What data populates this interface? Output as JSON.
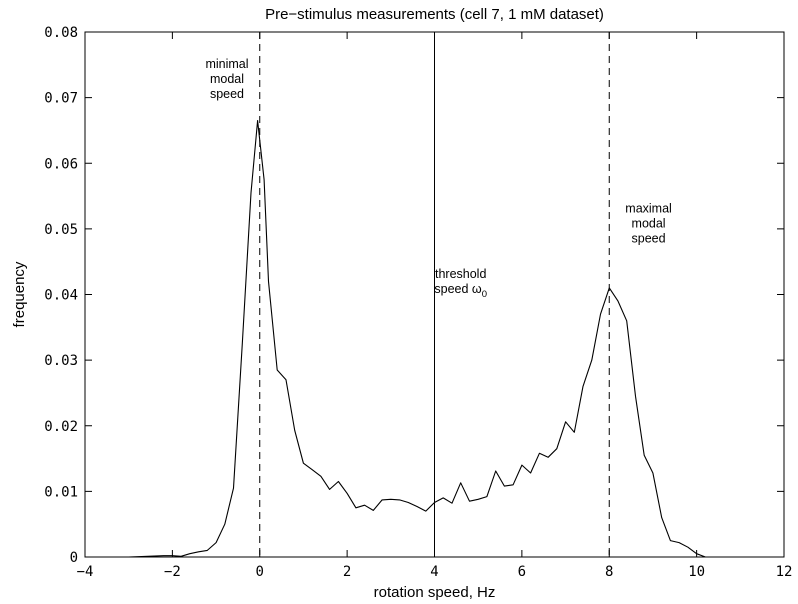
{
  "chart_data": {
    "type": "line",
    "title": "Pre−stimulus measurements (cell 7, 1 mM dataset)",
    "xlabel": "rotation speed, Hz",
    "ylabel": "frequency",
    "xlim": [
      -4,
      12
    ],
    "ylim": [
      0,
      0.08
    ],
    "xticks": [
      -4,
      -2,
      0,
      2,
      4,
      6,
      8,
      10,
      12
    ],
    "xtick_labels": [
      "−4",
      "−2",
      "0",
      "2",
      "4",
      "6",
      "8",
      "10",
      "12"
    ],
    "yticks": [
      0,
      0.01,
      0.02,
      0.03,
      0.04,
      0.05,
      0.06,
      0.07,
      0.08
    ],
    "ytick_labels": [
      "0",
      "0.01",
      "0.02",
      "0.03",
      "0.04",
      "0.05",
      "0.06",
      "0.07",
      "0.08"
    ],
    "grid": false,
    "series": [
      {
        "color": "#000000",
        "x": [
          -3.0,
          -2.2,
          -2.0,
          -1.8,
          -1.6,
          -1.4,
          -1.2,
          -1.0,
          -0.8,
          -0.6,
          -0.4,
          -0.2,
          -0.05,
          0.1,
          0.2,
          0.4,
          0.6,
          0.8,
          1.0,
          1.2,
          1.4,
          1.6,
          1.8,
          2.0,
          2.2,
          2.4,
          2.6,
          2.8,
          3.0,
          3.2,
          3.4,
          3.6,
          3.8,
          4.0,
          4.2,
          4.4,
          4.6,
          4.8,
          5.0,
          5.2,
          5.4,
          5.6,
          5.8,
          6.0,
          6.2,
          6.4,
          6.6,
          6.8,
          7.0,
          7.2,
          7.4,
          7.6,
          7.8,
          8.0,
          8.2,
          8.4,
          8.6,
          8.8,
          9.0,
          9.2,
          9.4,
          9.6,
          9.8,
          10.0,
          10.2
        ],
        "y": [
          0.0,
          0.0002,
          0.0002,
          0.0001,
          0.0005,
          0.0008,
          0.001,
          0.0022,
          0.005,
          0.0105,
          0.0325,
          0.0555,
          0.0665,
          0.0575,
          0.042,
          0.0285,
          0.027,
          0.0193,
          0.0143,
          0.0133,
          0.0123,
          0.0103,
          0.0115,
          0.0097,
          0.0075,
          0.0079,
          0.0071,
          0.0087,
          0.0088,
          0.0087,
          0.0083,
          0.0077,
          0.007,
          0.0083,
          0.009,
          0.0082,
          0.0113,
          0.0085,
          0.0088,
          0.0092,
          0.0131,
          0.0108,
          0.011,
          0.014,
          0.0128,
          0.0158,
          0.0152,
          0.0165,
          0.0206,
          0.019,
          0.026,
          0.03,
          0.037,
          0.041,
          0.039,
          0.036,
          0.0245,
          0.0155,
          0.0128,
          0.006,
          0.0025,
          0.0022,
          0.0015,
          0.0005,
          0.0
        ]
      }
    ],
    "reference_lines": [
      {
        "x": 0,
        "style": "dashed"
      },
      {
        "x": 4,
        "style": "solid"
      },
      {
        "x": 8,
        "style": "dashed"
      }
    ],
    "annotations": [
      {
        "lines": [
          "minimal",
          "modal",
          "speed"
        ],
        "x": -0.75,
        "y": 0.0745
      },
      {
        "lines": [
          "threshold",
          "speed ω"
        ],
        "subscript": "0",
        "x": 4.6,
        "y": 0.0425
      },
      {
        "lines": [
          "maximal",
          "modal",
          "speed"
        ],
        "x": 8.9,
        "y": 0.0525
      }
    ]
  }
}
